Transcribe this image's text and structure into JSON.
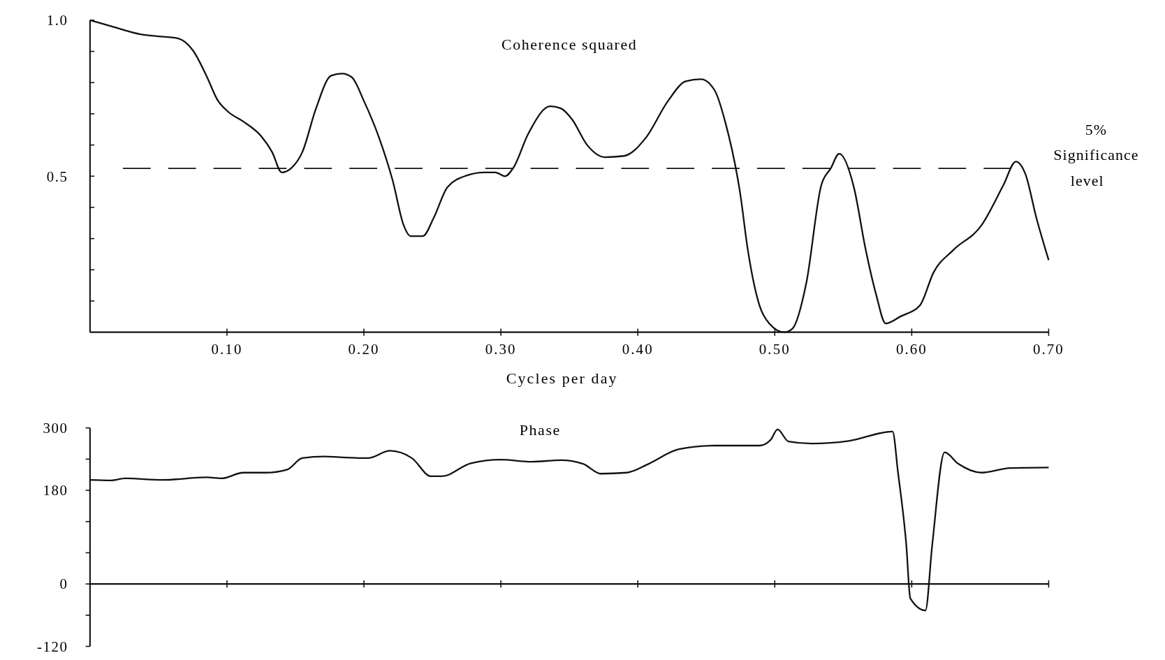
{
  "chart_data": [
    {
      "type": "line",
      "title": "Coherence squared",
      "xlabel": "Cycles per day",
      "xlim": [
        0,
        0.7
      ],
      "xticks": [
        {
          "value": 0.1,
          "label": "0.10"
        },
        {
          "value": 0.2,
          "label": "0.20"
        },
        {
          "value": 0.3,
          "label": "0.30"
        },
        {
          "value": 0.4,
          "label": "0.40"
        },
        {
          "value": 0.5,
          "label": "0.50"
        },
        {
          "value": 0.6,
          "label": "0.60"
        },
        {
          "value": 0.7,
          "label": "0.70"
        }
      ],
      "ylim": [
        0,
        1
      ],
      "yticks": [
        {
          "value": 0.1,
          "label": null
        },
        {
          "value": 0.2,
          "label": null
        },
        {
          "value": 0.3,
          "label": null
        },
        {
          "value": 0.4,
          "label": null
        },
        {
          "value": 0.5,
          "label": "0.5"
        },
        {
          "value": 0.6,
          "label": null
        },
        {
          "value": 0.7,
          "label": null
        },
        {
          "value": 0.8,
          "label": null
        },
        {
          "value": 0.9,
          "label": null
        },
        {
          "value": 1,
          "label": "1.0"
        }
      ],
      "ref_lines": [
        {
          "axis": "y",
          "value": 0.525,
          "label": "5% Significance level",
          "line_style": "dashed"
        }
      ],
      "line_style": "solid",
      "series": [
        {
          "color": "#111111",
          "x": [
            0,
            0.016,
            0.037,
            0.048,
            0.064,
            0.075,
            0.085,
            0.093,
            0.101,
            0.112,
            0.125,
            0.133,
            0.14,
            0.147,
            0.155,
            0.165,
            0.176,
            0.184,
            0.191,
            0.2,
            0.211,
            0.221,
            0.229,
            0.234,
            0.243,
            0.251,
            0.261,
            0.275,
            0.288,
            0.296,
            0.303,
            0.309,
            0.32,
            0.336,
            0.344,
            0.352,
            0.363,
            0.376,
            0.39,
            0.406,
            0.422,
            0.435,
            0.446,
            0.456,
            0.464,
            0.475,
            0.48,
            0.488,
            0.496,
            0.507,
            0.513,
            0.523,
            0.534,
            0.541,
            0.547,
            0.558,
            0.566,
            0.574,
            0.581,
            0.592,
            0.606,
            0.616,
            0.63,
            0.651,
            0.667,
            0.676,
            0.683,
            0.691,
            0.7
          ],
          "values": [
            1,
            0.98,
            0.955,
            0.949,
            0.942,
            0.904,
            0.822,
            0.745,
            0.706,
            0.675,
            0.628,
            0.577,
            0.512,
            0.526,
            0.577,
            0.717,
            0.822,
            0.829,
            0.818,
            0.741,
            0.624,
            0.486,
            0.343,
            0.308,
            0.308,
            0.367,
            0.465,
            0.502,
            0.512,
            0.512,
            0.5,
            0.526,
            0.636,
            0.724,
            0.717,
            0.682,
            0.6,
            0.561,
            0.565,
            0.624,
            0.741,
            0.804,
            0.811,
            0.776,
            0.671,
            0.437,
            0.273,
            0.098,
            0.028,
            0,
            0.012,
            0.157,
            0.472,
            0.526,
            0.572,
            0.46,
            0.273,
            0.121,
            0.028,
            0.051,
            0.086,
            0.192,
            0.262,
            0.343,
            0.472,
            0.547,
            0.507,
            0.367,
            0.231
          ]
        }
      ]
    },
    {
      "type": "line",
      "title": "Phase",
      "xlim": [
        0,
        0.7
      ],
      "tick_labels": "y",
      "xticks": [
        {
          "value": 0.1,
          "label": null
        },
        {
          "value": 0.2,
          "label": null
        },
        {
          "value": 0.3,
          "label": null
        },
        {
          "value": 0.4,
          "label": null
        },
        {
          "value": 0.5,
          "label": null
        },
        {
          "value": 0.6,
          "label": null
        },
        {
          "value": 0.7,
          "label": null
        }
      ],
      "ylim": [
        -120,
        300
      ],
      "yticks": [
        {
          "value": -120,
          "label": "-120"
        },
        {
          "value": -60,
          "label": null
        },
        0,
        {
          "value": 60,
          "label": null
        },
        {
          "value": 120,
          "label": null
        },
        180,
        {
          "value": 240,
          "label": null
        },
        300
      ],
      "line_style": "solid",
      "series": [
        {
          "color": "#111111",
          "x": [
            0,
            0.015,
            0.026,
            0.053,
            0.085,
            0.096,
            0.112,
            0.128,
            0.144,
            0.155,
            0.171,
            0.187,
            0.203,
            0.219,
            0.235,
            0.249,
            0.257,
            0.278,
            0.3,
            0.322,
            0.344,
            0.36,
            0.373,
            0.392,
            0.408,
            0.43,
            0.457,
            0.489,
            0.497,
            0.502,
            0.51,
            0.527,
            0.554,
            0.586,
            0.59,
            0.596,
            0.599,
            0.61,
            0.615,
            0.624,
            0.634,
            0.651,
            0.672,
            0.7
          ],
          "values": [
            200,
            199,
            203,
            200,
            205,
            203,
            214,
            214,
            220,
            242,
            245,
            243,
            242,
            256,
            242,
            207,
            207,
            232,
            239,
            235,
            238,
            231,
            212,
            214,
            231,
            259,
            266,
            266,
            277,
            297,
            274,
            270,
            275,
            293,
            214,
            76,
            -28,
            -51,
            76,
            253,
            231,
            214,
            223,
            224
          ]
        }
      ]
    }
  ]
}
